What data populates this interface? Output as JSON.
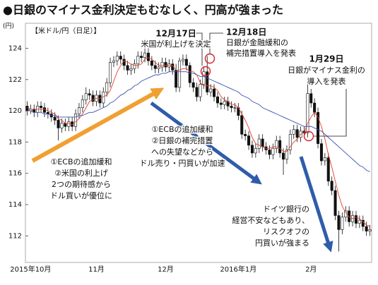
{
  "chart_data": {
    "type": "candlestick",
    "title": "●日銀のマイナス金利決定もむなしく、円高が強まった",
    "y_unit": "(円)",
    "subtitle": "【米ドル/円（日足）】",
    "categories": [
      null,
      "2015年10月",
      null,
      null,
      null,
      null,
      null,
      null,
      null,
      null,
      null,
      null,
      null,
      null,
      null,
      null,
      null,
      null,
      null,
      null,
      "11月",
      null,
      null,
      null,
      null,
      null,
      null,
      null,
      null,
      null,
      null,
      null,
      null,
      null,
      null,
      null,
      null,
      null,
      null,
      null,
      "12月",
      null,
      null,
      null,
      null,
      null,
      null,
      null,
      null,
      null,
      null,
      null,
      null,
      null,
      null,
      null,
      null,
      null,
      null,
      null,
      null,
      "2016年1月",
      null,
      null,
      null,
      null,
      null,
      null,
      null,
      null,
      null,
      null,
      null,
      null,
      null,
      null,
      null,
      null,
      null,
      null,
      null,
      null,
      "2月",
      null,
      null,
      null,
      null,
      null,
      null,
      null,
      null,
      null,
      null,
      null,
      null,
      null,
      null,
      null,
      null,
      null
    ],
    "open": [
      120.3,
      120.0,
      120.1,
      119.9,
      120.3,
      120.2,
      119.9,
      119.8,
      119.6,
      119.4,
      118.9,
      119.2,
      119.0,
      119.3,
      119.0,
      119.8,
      120.2,
      120.7,
      121.1,
      121.0,
      120.6,
      121.0,
      120.5,
      121.2,
      121.8,
      123.1,
      123.2,
      123.5,
      123.3,
      122.9,
      122.6,
      122.7,
      123.0,
      123.5,
      123.4,
      123.7,
      123.2,
      122.9,
      122.7,
      122.8,
      123.1,
      122.8,
      123.0,
      122.6,
      121.5,
      123.2,
      123.3,
      122.9,
      121.8,
      121.5,
      120.9,
      121.7,
      122.5,
      121.2,
      121.4,
      120.9,
      120.5,
      120.4,
      120.6,
      120.3,
      120.2,
      120.2,
      119.7,
      118.5,
      118.4,
      117.8,
      117.3,
      117.6,
      118.2,
      117.7,
      117.5,
      117.2,
      117.6,
      118.1,
      117.3,
      116.9,
      117.5,
      118.5,
      118.8,
      118.3,
      118.7,
      118.6,
      121.1,
      120.5,
      119.9,
      117.9,
      116.8,
      117.0,
      115.5,
      114.9,
      113.3,
      112.4,
      113.2,
      113.6,
      112.9,
      113.3,
      112.8,
      113.0,
      112.6,
      112.3
    ],
    "high": [
      120.6,
      120.4,
      120.4,
      120.6,
      120.6,
      120.5,
      120.2,
      120.1,
      119.9,
      119.7,
      119.5,
      119.5,
      119.6,
      119.6,
      120.1,
      120.5,
      121.0,
      121.5,
      121.4,
      121.3,
      121.3,
      121.3,
      121.5,
      122.1,
      123.4,
      123.5,
      123.8,
      123.8,
      123.6,
      123.2,
      123.0,
      123.3,
      123.8,
      123.8,
      124.0,
      124.0,
      123.5,
      123.2,
      123.1,
      123.4,
      123.4,
      123.3,
      123.3,
      123.0,
      123.4,
      123.6,
      123.6,
      123.1,
      122.1,
      121.8,
      122.0,
      122.8,
      123.5,
      121.7,
      121.7,
      121.2,
      120.8,
      120.9,
      120.9,
      120.6,
      120.5,
      120.5,
      120.0,
      118.8,
      118.7,
      118.1,
      117.9,
      118.5,
      118.5,
      118.0,
      117.8,
      117.9,
      118.4,
      118.4,
      117.6,
      117.8,
      118.8,
      119.1,
      119.1,
      119.0,
      119.0,
      121.7,
      121.4,
      120.8,
      120.2,
      118.2,
      117.3,
      117.3,
      115.8,
      115.2,
      113.6,
      113.5,
      113.9,
      113.9,
      113.6,
      113.6,
      113.3,
      113.3,
      112.9,
      112.7
    ],
    "low": [
      119.7,
      119.8,
      119.6,
      119.6,
      119.9,
      119.6,
      119.5,
      119.3,
      119.1,
      118.1,
      118.6,
      118.7,
      118.7,
      118.7,
      118.7,
      119.5,
      119.9,
      120.4,
      120.7,
      120.3,
      120.3,
      120.2,
      120.2,
      120.9,
      121.5,
      122.8,
      122.9,
      123.0,
      122.6,
      122.3,
      122.3,
      122.4,
      122.7,
      123.1,
      123.1,
      122.9,
      122.6,
      122.4,
      122.4,
      122.5,
      122.5,
      122.5,
      122.3,
      121.2,
      121.2,
      122.9,
      122.6,
      121.5,
      121.2,
      120.6,
      120.6,
      121.4,
      121.0,
      120.9,
      120.6,
      120.2,
      120.1,
      120.1,
      120.0,
      119.9,
      119.9,
      119.4,
      118.2,
      118.1,
      117.5,
      117.0,
      117.0,
      117.3,
      117.4,
      117.2,
      116.9,
      116.9,
      117.3,
      117.0,
      115.9,
      116.6,
      117.2,
      118.2,
      118.0,
      118.0,
      118.3,
      118.3,
      120.2,
      119.6,
      117.6,
      116.5,
      116.5,
      115.2,
      114.6,
      113.0,
      111.0,
      112.1,
      112.9,
      112.6,
      112.6,
      112.5,
      112.5,
      112.3,
      112.0,
      112.0
    ],
    "close": [
      120.0,
      120.1,
      119.9,
      120.3,
      120.2,
      119.9,
      119.8,
      119.6,
      119.4,
      118.9,
      119.2,
      119.0,
      119.3,
      119.0,
      119.8,
      120.2,
      120.7,
      121.1,
      121.0,
      120.6,
      121.0,
      120.5,
      121.2,
      121.8,
      123.1,
      123.2,
      123.5,
      123.3,
      122.9,
      122.6,
      122.7,
      123.0,
      123.5,
      123.4,
      123.7,
      123.2,
      122.9,
      122.7,
      122.8,
      123.1,
      122.8,
      123.0,
      122.6,
      121.5,
      123.2,
      123.3,
      122.9,
      121.8,
      121.5,
      120.9,
      121.7,
      122.5,
      121.2,
      121.4,
      120.9,
      120.5,
      120.4,
      120.6,
      120.3,
      120.2,
      120.2,
      119.7,
      118.5,
      118.4,
      117.8,
      117.3,
      117.6,
      118.2,
      117.7,
      117.5,
      117.2,
      117.6,
      118.1,
      117.3,
      116.9,
      117.5,
      118.5,
      118.8,
      118.3,
      118.7,
      118.6,
      121.1,
      120.5,
      119.9,
      117.9,
      116.8,
      117.0,
      115.5,
      114.9,
      113.3,
      112.4,
      113.2,
      113.6,
      112.9,
      113.3,
      112.8,
      113.0,
      112.6,
      112.3,
      112.4
    ],
    "up_color": "#ffffff",
    "down_color": "#111111",
    "candle_outline": "#111111",
    "moving_averages": [
      {
        "color": "#e0402a",
        "values": [
          120.2,
          120.1,
          120.1,
          120.1,
          120.1,
          120.1,
          120.0,
          119.9,
          119.8,
          119.5,
          119.4,
          119.2,
          119.2,
          119.1,
          119.3,
          119.5,
          119.8,
          120.2,
          120.6,
          120.7,
          120.8,
          120.8,
          120.9,
          121.0,
          121.3,
          121.9,
          122.5,
          122.9,
          123.2,
          123.1,
          123.0,
          122.9,
          122.9,
          123.0,
          123.3,
          123.4,
          123.3,
          123.1,
          122.9,
          122.9,
          122.9,
          122.9,
          122.9,
          122.6,
          122.6,
          122.7,
          122.7,
          122.5,
          122.5,
          122.3,
          121.8,
          121.6,
          121.6,
          121.6,
          121.5,
          121.3,
          120.9,
          120.7,
          120.6,
          120.4,
          120.4,
          120.2,
          119.8,
          119.4,
          118.9,
          118.3,
          117.9,
          117.8,
          117.7,
          117.6,
          117.6,
          117.7,
          117.7,
          117.6,
          117.4,
          117.4,
          117.7,
          118.0,
          118.2,
          118.5,
          118.6,
          119.2,
          119.6,
          119.9,
          119.6,
          119.0,
          118.2,
          117.2,
          116.4,
          115.5,
          114.6,
          113.9,
          113.5,
          113.2,
          113.1,
          113.2,
          113.1,
          112.9,
          112.7,
          112.6
        ]
      },
      {
        "color": "#3a4fb0",
        "values": [
          120.0,
          120.0,
          119.9,
          119.9,
          119.9,
          119.8,
          119.8,
          119.7,
          119.7,
          119.6,
          119.6,
          119.6,
          119.6,
          119.6,
          119.6,
          119.7,
          119.7,
          119.8,
          119.9,
          119.9,
          120.0,
          120.1,
          120.2,
          120.3,
          120.5,
          120.6,
          120.8,
          121.0,
          121.1,
          121.3,
          121.4,
          121.6,
          121.7,
          121.9,
          122.0,
          122.1,
          122.2,
          122.3,
          122.3,
          122.4,
          122.4,
          122.5,
          122.5,
          122.5,
          122.5,
          122.5,
          122.5,
          122.4,
          122.4,
          122.3,
          122.2,
          122.2,
          122.1,
          122.0,
          121.9,
          121.8,
          121.7,
          121.6,
          121.5,
          121.4,
          121.3,
          121.2,
          121.0,
          120.9,
          120.8,
          120.6,
          120.5,
          120.4,
          120.2,
          120.1,
          120.0,
          119.9,
          119.8,
          119.7,
          119.6,
          119.5,
          119.4,
          119.3,
          119.2,
          119.1,
          119.0,
          119.0,
          119.0,
          118.9,
          118.8,
          118.7,
          118.5,
          118.3,
          118.1,
          117.9,
          117.7,
          117.5,
          117.3,
          117.1,
          116.9,
          116.7,
          116.5,
          116.4,
          116.2,
          116.1
        ]
      }
    ],
    "ylim": [
      110.3,
      125.6
    ],
    "yticks": [
      112,
      114,
      116,
      118,
      120,
      122,
      124
    ],
    "grid": false,
    "annotations": [
      {
        "lines": [
          "12月17日",
          "米国が利上げを決定"
        ]
      },
      {
        "lines": [
          "12月18日",
          "日銀が金融緩和の",
          "補完措置導入を発表"
        ]
      },
      {
        "lines": [
          "1月29日",
          "日銀がマイナス金利の",
          "導入を発表"
        ]
      },
      {
        "lines": [
          "①ECBの追加緩和",
          "②日銀の補完措置",
          "への失望などから",
          "ドル売り・円買いが加速"
        ]
      },
      {
        "lines": [
          "①ECBの追加緩和",
          "②米国の利上げ",
          "2つの期待感から",
          "ドル買いが優位に"
        ]
      },
      {
        "lines": [
          "ドイツ銀行の",
          "経営不安などもあり、",
          "リスクオフの",
          "円買いが強まる"
        ]
      }
    ]
  }
}
